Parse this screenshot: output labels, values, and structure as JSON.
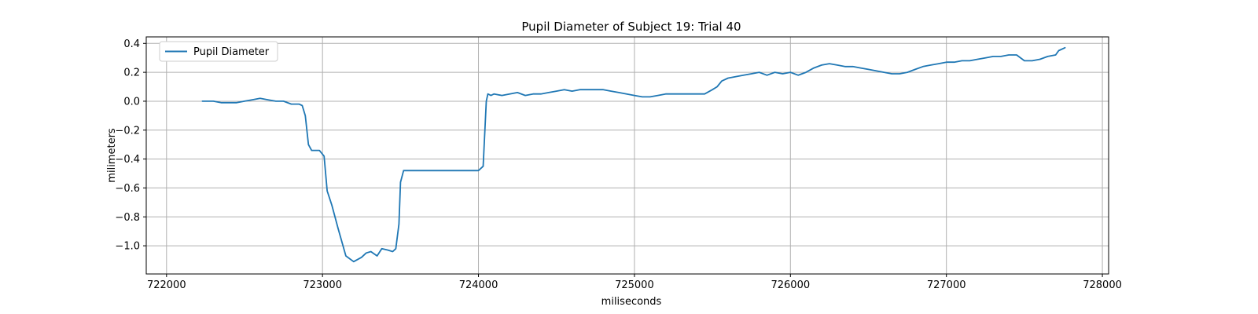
{
  "chart_data": {
    "type": "line",
    "title": "Pupil Diameter of Subject 19: Trial 40",
    "xlabel": "miliseconds",
    "ylabel": "milimeters",
    "xlim": [
      721870,
      728040
    ],
    "ylim": [
      -1.195,
      0.445
    ],
    "xticks": [
      722000,
      723000,
      724000,
      725000,
      726000,
      727000,
      728000
    ],
    "yticks": [
      0.4,
      0.2,
      0.0,
      -0.2,
      -0.4,
      -0.6,
      -0.8,
      -1.0
    ],
    "ytick_labels": [
      "0.4",
      "0.2",
      "0.0",
      "−0.2",
      "−0.4",
      "−0.6",
      "−0.8",
      "−1.0"
    ],
    "grid": true,
    "legend_position": "upper-left",
    "series": [
      {
        "name": "Pupil Diameter",
        "color": "#1f77b4",
        "x": [
          722230,
          722300,
          722350,
          722400,
          722450,
          722500,
          722550,
          722600,
          722650,
          722700,
          722750,
          722800,
          722850,
          722870,
          722890,
          722910,
          722930,
          722950,
          722980,
          723010,
          723030,
          723060,
          723100,
          723150,
          723200,
          723250,
          723280,
          723310,
          723350,
          723380,
          723420,
          723450,
          723470,
          723490,
          723500,
          723520,
          723600,
          723700,
          723800,
          723900,
          724000,
          724030,
          724050,
          724060,
          724080,
          724100,
          724150,
          724200,
          724250,
          724300,
          724350,
          724400,
          724450,
          724500,
          724550,
          724600,
          724650,
          724700,
          724750,
          724800,
          724850,
          724900,
          724950,
          725000,
          725050,
          725100,
          725150,
          725200,
          725250,
          725300,
          725400,
          725450,
          725500,
          725530,
          725560,
          725600,
          725650,
          725700,
          725750,
          725800,
          725850,
          725900,
          725950,
          726000,
          726050,
          726100,
          726150,
          726200,
          726250,
          726300,
          726350,
          726400,
          726450,
          726500,
          726550,
          726600,
          726650,
          726700,
          726750,
          726800,
          726850,
          726900,
          726950,
          727000,
          727050,
          727100,
          727150,
          727200,
          727250,
          727300,
          727350,
          727400,
          727450,
          727500,
          727550,
          727600,
          727650,
          727700,
          727720,
          727760
        ],
        "values": [
          0.0,
          0.0,
          -0.01,
          -0.01,
          -0.01,
          0.0,
          0.01,
          0.02,
          0.01,
          0.0,
          0.0,
          -0.02,
          -0.02,
          -0.03,
          -0.1,
          -0.3,
          -0.34,
          -0.34,
          -0.34,
          -0.38,
          -0.62,
          -0.72,
          -0.88,
          -1.07,
          -1.11,
          -1.08,
          -1.05,
          -1.04,
          -1.07,
          -1.02,
          -1.03,
          -1.04,
          -1.02,
          -0.85,
          -0.56,
          -0.48,
          -0.48,
          -0.48,
          -0.48,
          -0.48,
          -0.48,
          -0.45,
          0.0,
          0.05,
          0.04,
          0.05,
          0.04,
          0.05,
          0.06,
          0.04,
          0.05,
          0.05,
          0.06,
          0.07,
          0.08,
          0.07,
          0.08,
          0.08,
          0.08,
          0.08,
          0.07,
          0.06,
          0.05,
          0.04,
          0.03,
          0.03,
          0.04,
          0.05,
          0.05,
          0.05,
          0.05,
          0.05,
          0.08,
          0.1,
          0.14,
          0.16,
          0.17,
          0.18,
          0.19,
          0.2,
          0.18,
          0.2,
          0.19,
          0.2,
          0.18,
          0.2,
          0.23,
          0.25,
          0.26,
          0.25,
          0.24,
          0.24,
          0.23,
          0.22,
          0.21,
          0.2,
          0.19,
          0.19,
          0.2,
          0.22,
          0.24,
          0.25,
          0.26,
          0.27,
          0.27,
          0.28,
          0.28,
          0.29,
          0.3,
          0.31,
          0.31,
          0.32,
          0.32,
          0.28,
          0.28,
          0.29,
          0.31,
          0.32,
          0.35,
          0.37
        ]
      }
    ]
  }
}
